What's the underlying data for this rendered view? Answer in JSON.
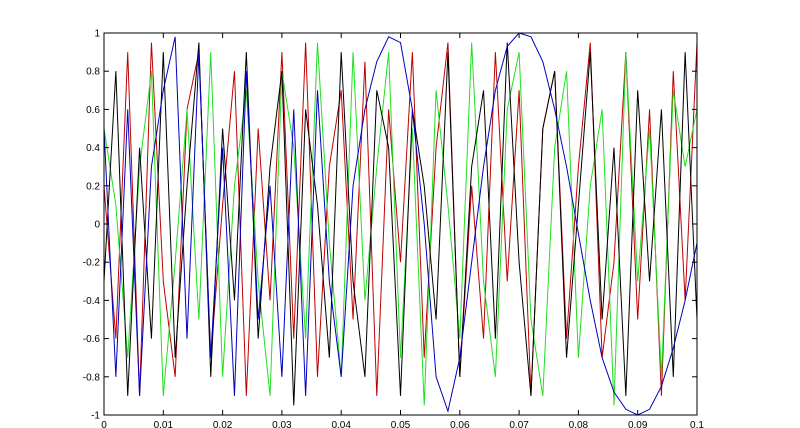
{
  "chart_data": {
    "type": "line",
    "x": [
      0,
      0.002,
      0.004,
      0.006,
      0.008,
      0.01,
      0.012,
      0.014,
      0.016,
      0.018,
      0.02,
      0.022,
      0.024,
      0.026,
      0.028,
      0.03,
      0.032,
      0.034,
      0.036,
      0.038,
      0.04,
      0.042,
      0.044,
      0.046,
      0.048,
      0.05,
      0.052,
      0.054,
      0.056,
      0.058,
      0.06,
      0.062,
      0.064,
      0.066,
      0.068,
      0.07,
      0.072,
      0.074,
      0.076,
      0.078,
      0.08,
      0.082,
      0.084,
      0.086,
      0.088,
      0.09,
      0.092,
      0.094,
      0.096,
      0.098,
      0.1
    ],
    "series": [
      {
        "color": "#c00000",
        "values": [
          0.2,
          -0.6,
          0.9,
          -0.9,
          0.95,
          -0.3,
          -0.8,
          0.6,
          0.9,
          -0.7,
          0.1,
          0.8,
          -0.9,
          0.5,
          -0.4,
          0.9,
          -0.6,
          0.95,
          -0.8,
          0.3,
          0.7,
          -0.5,
          0.85,
          -0.9,
          0.6,
          -0.2,
          0.9,
          -0.7,
          0.4,
          0.95,
          -0.8,
          0.2,
          -0.6,
          0.9,
          -0.3,
          0.7,
          -0.9,
          0.5,
          0.8,
          -0.6,
          0.3,
          0.95,
          -0.7,
          -0.2,
          0.9,
          -0.5,
          0.6,
          -0.9,
          0.8,
          -0.4,
          0.95
        ]
      },
      {
        "color": "#20e020",
        "values": [
          0.5,
          0.1,
          -0.7,
          0.3,
          0.8,
          -0.9,
          -0.2,
          0.6,
          -0.5,
          0.9,
          -0.8,
          0.2,
          0.7,
          -0.3,
          -0.9,
          0.8,
          0.4,
          -0.6,
          0.95,
          -0.1,
          -0.8,
          0.9,
          -0.4,
          0.3,
          0.9,
          -0.7,
          0.5,
          -0.95,
          0.7,
          0.1,
          -0.6,
          0.95,
          -0.3,
          -0.8,
          0.6,
          0.9,
          -0.5,
          -0.9,
          0.4,
          0.8,
          -0.7,
          0.2,
          0.6,
          -0.95,
          0.9,
          -0.3,
          0.5,
          -0.8,
          0.7,
          0.3,
          0.6
        ]
      },
      {
        "color": "#000000",
        "values": [
          -0.3,
          0.8,
          -0.9,
          0.4,
          -0.6,
          0.9,
          -0.7,
          0.2,
          0.95,
          -0.8,
          0.5,
          -0.4,
          0.9,
          -0.6,
          0.3,
          0.8,
          -0.95,
          0.6,
          0.1,
          -0.7,
          0.9,
          -0.3,
          -0.8,
          0.7,
          0.4,
          -0.9,
          0.6,
          0.2,
          -0.5,
          0.9,
          -0.8,
          0.3,
          0.7,
          -0.6,
          0.95,
          -0.2,
          -0.9,
          0.5,
          0.8,
          -0.7,
          0.1,
          0.9,
          -0.5,
          0.4,
          -0.9,
          0.7,
          -0.3,
          0.6,
          -0.8,
          0.9,
          -0.5
        ]
      },
      {
        "color": "#0000c0",
        "values": [
          0.5,
          -0.8,
          0.6,
          -0.9,
          0.3,
          0.7,
          0.98,
          -0.6,
          0.9,
          -0.7,
          0.4,
          -0.9,
          0.8,
          -0.5,
          0.2,
          -0.8,
          0.6,
          -0.9,
          0.7,
          -0.3,
          -0.8,
          0.2,
          0.6,
          0.85,
          0.98,
          0.95,
          0.6,
          0.0,
          -0.8,
          -0.98,
          -0.7,
          -0.2,
          0.3,
          0.7,
          0.93,
          1.0,
          0.98,
          0.85,
          0.6,
          0.3,
          -0.05,
          -0.4,
          -0.7,
          -0.88,
          -0.97,
          -1.0,
          -0.97,
          -0.85,
          -0.65,
          -0.4,
          -0.1
        ]
      }
    ],
    "xlim": [
      0,
      0.1
    ],
    "xticks": [
      0,
      0.01,
      0.02,
      0.03,
      0.04,
      0.05,
      0.06,
      0.07,
      0.08,
      0.09,
      0.1
    ],
    "ylim": [
      -1,
      1
    ],
    "yticks": [
      -1,
      -0.8,
      -0.6,
      -0.4,
      -0.2,
      0,
      0.2,
      0.4,
      0.6,
      0.8,
      1
    ]
  }
}
